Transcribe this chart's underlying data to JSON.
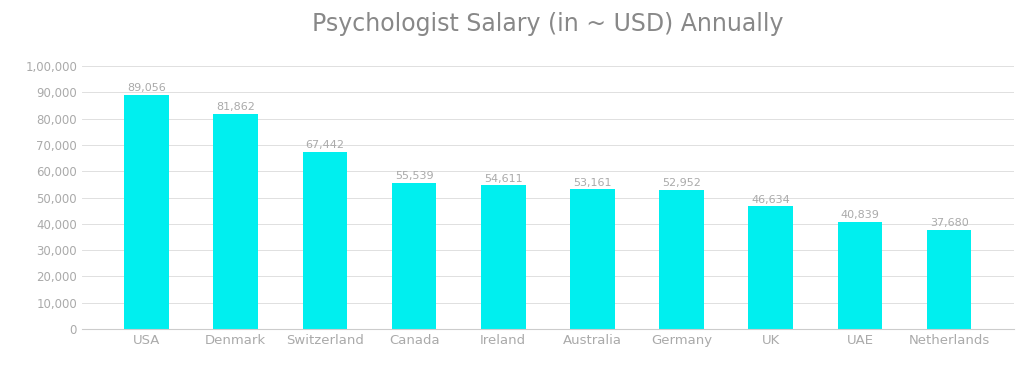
{
  "title": "Psychologist Salary (in ~ USD) Annually",
  "categories": [
    "USA",
    "Denmark",
    "Switzerland",
    "Canada",
    "Ireland",
    "Australia",
    "Germany",
    "UK",
    "UAE",
    "Netherlands"
  ],
  "values": [
    89056,
    81862,
    67442,
    55539,
    54611,
    53161,
    52952,
    46634,
    40839,
    37680
  ],
  "bar_color": "#00EFEF",
  "bar_edge_color": "none",
  "background_color": "#ffffff",
  "title_fontsize": 17,
  "title_color": "#888888",
  "tick_label_color": "#aaaaaa",
  "xtick_label_color": "#aaaaaa",
  "value_label_color": "#aaaaaa",
  "value_label_fontsize": 8.0,
  "ytick_labels": [
    "0",
    "10,000",
    "20,000",
    "30,000",
    "40,000",
    "50,000",
    "60,000",
    "70,000",
    "80,000",
    "90,000",
    "1,00,000"
  ],
  "ytick_values": [
    0,
    10000,
    20000,
    30000,
    40000,
    50000,
    60000,
    70000,
    80000,
    90000,
    100000
  ],
  "ylim": [
    0,
    108000
  ],
  "grid_color": "#e0e0e0",
  "spine_color": "#cccccc",
  "bar_width": 0.5
}
